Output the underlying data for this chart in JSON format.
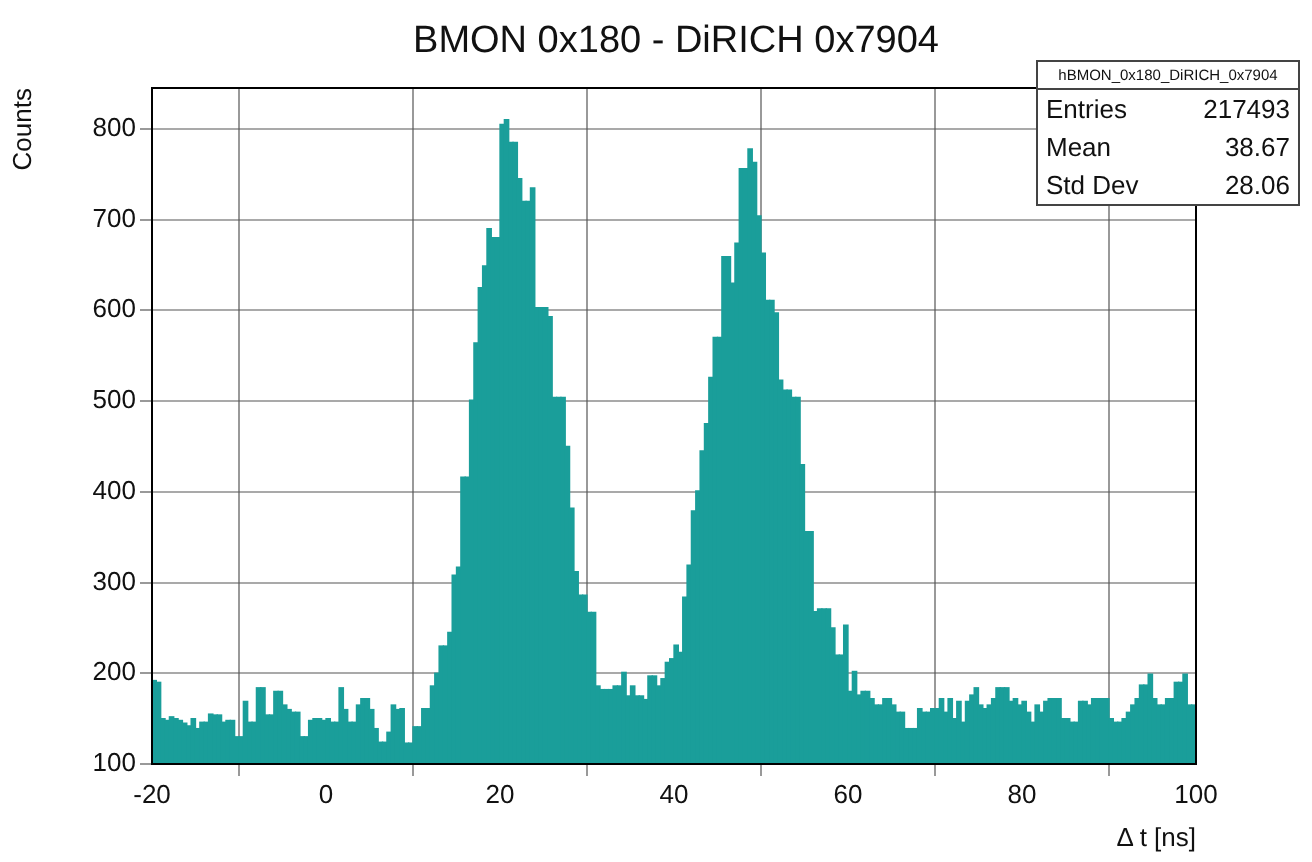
{
  "chart_data": {
    "type": "histogram",
    "title": "BMON 0x180 - DiRICH 0x7904",
    "xlabel": "Δ t [ns]",
    "ylabel": "Counts",
    "bins": [
      -20,
      -19.5,
      -19,
      -18.5,
      -18,
      -17.5,
      -17,
      -16.5,
      -16,
      -15.5,
      -15,
      -14.5,
      -14,
      -13.5,
      -13,
      -12.5,
      -12,
      -11.5,
      -11,
      -10.5,
      -10,
      -9.5,
      -9,
      -8.5,
      -8,
      -7.5,
      -7,
      -6.5,
      -6,
      -5.5,
      -5,
      -4.5,
      -4,
      -3.5,
      -3,
      -2.5,
      -2,
      -1.5,
      -1,
      -0.5,
      0,
      0.5,
      1,
      1.5,
      2,
      2.5,
      3,
      3.5,
      4,
      4.5,
      5,
      5.5,
      6,
      6.5,
      7,
      7.5,
      8,
      8.5,
      9,
      9.5,
      10,
      10.5,
      11,
      11.5,
      12,
      12.5,
      13,
      13.5,
      14,
      14.5,
      15,
      15.5,
      16,
      16.5,
      17,
      17.5,
      18,
      18.5,
      19,
      19.5,
      20,
      20.5,
      21,
      21.5,
      22,
      22.5,
      23,
      23.5,
      24,
      24.5,
      25,
      25.5,
      26,
      26.5,
      27,
      27.5,
      28,
      28.5,
      29,
      29.5,
      30,
      30.5,
      31,
      31.5,
      32,
      32.5,
      33,
      33.5,
      34,
      34.5,
      35,
      35.5,
      36,
      36.5,
      37,
      37.5,
      38,
      38.5,
      39,
      39.5,
      40,
      40.5,
      41,
      41.5,
      42,
      42.5,
      43,
      43.5,
      44,
      44.5,
      45,
      45.5,
      46,
      46.5,
      47,
      47.5,
      48,
      48.5,
      49,
      49.5,
      50,
      50.5,
      51,
      51.5,
      52,
      52.5,
      53,
      53.5,
      54,
      54.5,
      55,
      55.5,
      56,
      56.5,
      57,
      57.5,
      58,
      58.5,
      59,
      59.5,
      60,
      60.5,
      61,
      61.5,
      62,
      62.5,
      63,
      63.5,
      64,
      64.5,
      65,
      65.5,
      66,
      66.5,
      67,
      67.5,
      68,
      68.5,
      69,
      69.5,
      70,
      70.5,
      71,
      71.5,
      72,
      72.5,
      73,
      73.5,
      74,
      74.5,
      75,
      75.5,
      76,
      76.5,
      77,
      77.5,
      78,
      78.5,
      79,
      79.5,
      80,
      80.5,
      81,
      81.5,
      82,
      82.5,
      83,
      83.5,
      84,
      84.5,
      85,
      85.5,
      86,
      86.5,
      87,
      87.5,
      88,
      88.5,
      89,
      89.5,
      90,
      90.5,
      91,
      91.5,
      92,
      92.5,
      93,
      93.5,
      94,
      94.5,
      95,
      95.5,
      96,
      96.5,
      97,
      97.5,
      98,
      98.5,
      99,
      99.5,
      100
    ],
    "values": [
      192,
      190,
      150,
      148,
      152,
      150,
      148,
      145,
      142,
      150,
      139,
      146,
      146,
      155,
      154,
      154,
      146,
      148,
      148,
      130,
      130,
      169,
      146,
      146,
      184,
      184,
      154,
      154,
      180,
      180,
      165,
      160,
      157,
      157,
      130,
      130,
      148,
      150,
      150,
      148,
      150,
      146,
      146,
      184,
      160,
      146,
      146,
      165,
      172,
      172,
      160,
      139,
      124,
      124,
      135,
      165,
      160,
      161,
      123,
      123,
      141,
      141,
      161,
      161,
      186,
      200,
      230,
      230,
      245,
      308,
      317,
      416,
      416,
      501,
      564,
      625,
      649,
      690,
      680,
      680,
      805,
      810,
      785,
      785,
      745,
      720,
      720,
      735,
      603,
      603,
      603,
      593,
      504,
      504,
      504,
      450,
      382,
      312,
      286,
      286,
      267,
      267,
      186,
      182,
      182,
      182,
      186,
      186,
      201,
      175,
      186,
      175,
      175,
      171,
      197,
      197,
      186,
      194,
      212,
      216,
      231,
      223,
      284,
      319,
      379,
      401,
      445,
      475,
      526,
      570,
      570,
      659,
      659,
      630,
      674,
      756,
      756,
      778,
      763,
      704,
      663,
      611,
      611,
      597,
      523,
      512,
      512,
      504,
      504,
      430,
      356,
      356,
      268,
      271,
      271,
      271,
      250,
      220,
      220,
      253,
      180,
      202,
      176,
      180,
      180,
      172,
      165,
      165,
      172,
      172,
      165,
      157,
      157,
      139,
      139,
      139,
      161,
      157,
      157,
      161,
      161,
      172,
      157,
      172,
      150,
      169,
      146,
      169,
      176,
      184,
      165,
      161,
      165,
      172,
      184,
      184,
      184,
      169,
      172,
      165,
      169,
      157,
      146,
      165,
      157,
      169,
      172,
      172,
      172,
      150,
      150,
      146,
      146,
      169,
      169,
      165,
      172,
      172,
      172,
      172,
      150,
      146,
      146,
      150,
      157,
      165,
      172,
      187,
      187,
      199,
      172,
      165,
      165,
      172,
      172,
      190,
      190,
      199,
      165,
      165
    ],
    "color": "#1a9e9a",
    "xlim": [
      -20,
      100
    ],
    "xticks": [
      -20,
      0,
      20,
      40,
      60,
      80,
      100
    ],
    "ylim": [
      100,
      845
    ],
    "yticks": [
      100,
      200,
      300,
      400,
      500,
      600,
      700,
      800
    ],
    "grid": true,
    "annotations": [
      "hBMON_0x180_DiRICH_0x7904",
      "Entries",
      "217493",
      "Mean",
      "38.67",
      "Std Dev",
      "28.06"
    ]
  }
}
